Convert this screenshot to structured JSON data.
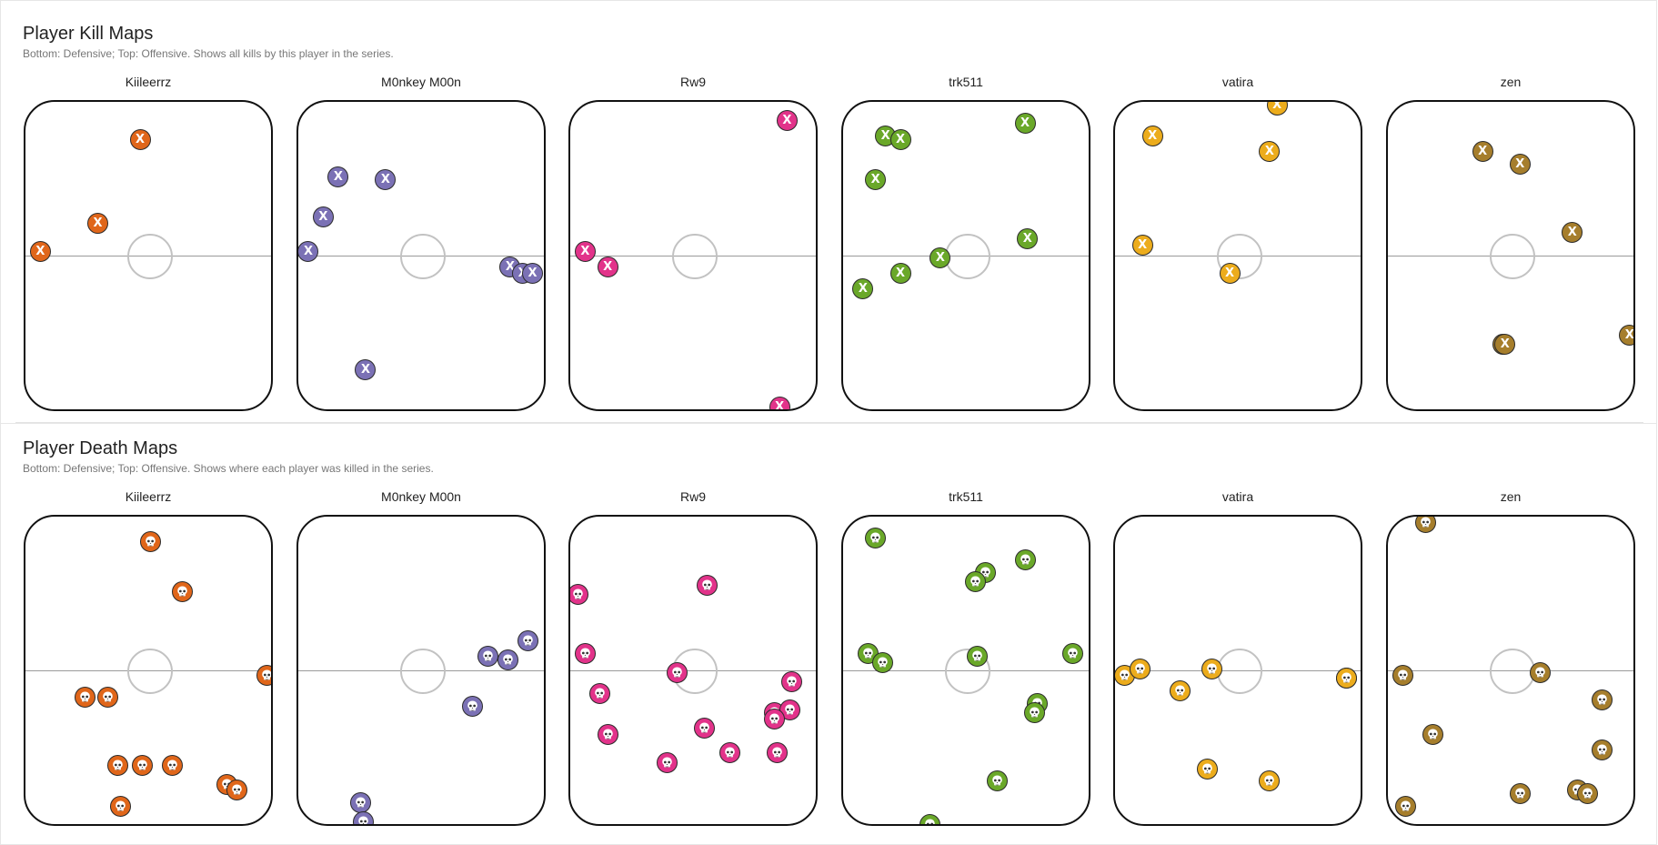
{
  "kill_section": {
    "title": "Player Kill Maps",
    "subtitle": "Bottom: Defensive; Top: Offensive. Shows all kills by this player in the series.",
    "marker_glyph": "X",
    "marker_icon": "x-icon"
  },
  "death_section": {
    "title": "Player Death Maps",
    "subtitle": "Bottom: Defensive; Top: Offensive. Shows where each player was killed in the series.",
    "marker_icon": "skull-icon"
  },
  "players": [
    {
      "name": "Kiileerrz",
      "color": "#e0661a",
      "kills": [
        [
          0.46,
          0.12
        ],
        [
          0.29,
          0.39
        ],
        [
          0.06,
          0.48
        ]
      ],
      "deaths": [
        [
          0.5,
          0.08
        ],
        [
          0.63,
          0.24
        ],
        [
          0.24,
          0.58
        ],
        [
          0.33,
          0.58
        ],
        [
          0.97,
          0.51
        ],
        [
          0.37,
          0.8
        ],
        [
          0.47,
          0.8
        ],
        [
          0.59,
          0.8
        ],
        [
          0.38,
          0.93
        ],
        [
          0.81,
          0.86
        ],
        [
          0.85,
          0.88
        ]
      ]
    },
    {
      "name": "M0nkey M00n",
      "color": "#7b71b5",
      "kills": [
        [
          0.16,
          0.24
        ],
        [
          0.35,
          0.25
        ],
        [
          0.1,
          0.37
        ],
        [
          0.04,
          0.48
        ],
        [
          0.85,
          0.53
        ],
        [
          0.9,
          0.55
        ],
        [
          0.94,
          0.55
        ],
        [
          0.27,
          0.86
        ]
      ],
      "deaths": [
        [
          0.92,
          0.4
        ],
        [
          0.76,
          0.45
        ],
        [
          0.84,
          0.46
        ],
        [
          0.7,
          0.61
        ],
        [
          0.25,
          0.92
        ],
        [
          0.26,
          0.98
        ]
      ]
    },
    {
      "name": "Rw9",
      "color": "#e2338a",
      "kills": [
        [
          0.87,
          0.06
        ],
        [
          0.06,
          0.48
        ],
        [
          0.15,
          0.53
        ],
        [
          0.84,
          0.98
        ]
      ],
      "deaths": [
        [
          0.03,
          0.25
        ],
        [
          0.55,
          0.22
        ],
        [
          0.06,
          0.44
        ],
        [
          0.43,
          0.5
        ],
        [
          0.12,
          0.57
        ],
        [
          0.89,
          0.53
        ],
        [
          0.15,
          0.7
        ],
        [
          0.54,
          0.68
        ],
        [
          0.82,
          0.63
        ],
        [
          0.88,
          0.62
        ],
        [
          0.82,
          0.65
        ],
        [
          0.39,
          0.79
        ],
        [
          0.64,
          0.76
        ],
        [
          0.83,
          0.76
        ]
      ]
    },
    {
      "name": "trk511",
      "color": "#6aa829",
      "kills": [
        [
          0.73,
          0.07
        ],
        [
          0.17,
          0.11
        ],
        [
          0.23,
          0.12
        ],
        [
          0.13,
          0.25
        ],
        [
          0.74,
          0.44
        ],
        [
          0.39,
          0.5
        ],
        [
          0.23,
          0.55
        ],
        [
          0.08,
          0.6
        ]
      ],
      "deaths": [
        [
          0.13,
          0.07
        ],
        [
          0.73,
          0.14
        ],
        [
          0.57,
          0.18
        ],
        [
          0.53,
          0.21
        ],
        [
          0.1,
          0.44
        ],
        [
          0.16,
          0.47
        ],
        [
          0.54,
          0.45
        ],
        [
          0.92,
          0.44
        ],
        [
          0.78,
          0.6
        ],
        [
          0.77,
          0.63
        ],
        [
          0.62,
          0.85
        ],
        [
          0.35,
          0.99
        ]
      ]
    },
    {
      "name": "vatira",
      "color": "#ecac1c",
      "kills": [
        [
          0.65,
          0.01
        ],
        [
          0.15,
          0.11
        ],
        [
          0.62,
          0.16
        ],
        [
          0.11,
          0.46
        ],
        [
          0.46,
          0.55
        ]
      ],
      "deaths": [
        [
          0.04,
          0.51
        ],
        [
          0.1,
          0.49
        ],
        [
          0.26,
          0.56
        ],
        [
          0.39,
          0.49
        ],
        [
          0.37,
          0.81
        ],
        [
          0.62,
          0.85
        ],
        [
          0.93,
          0.52
        ],
        [
          0.93,
          0.52
        ]
      ]
    },
    {
      "name": "zen",
      "color": "#a67e2c",
      "kills": [
        [
          0.38,
          0.16
        ],
        [
          0.53,
          0.2
        ],
        [
          0.74,
          0.42
        ],
        [
          0.46,
          0.78
        ],
        [
          0.47,
          0.78
        ],
        [
          0.97,
          0.75
        ]
      ],
      "deaths": [
        [
          0.15,
          0.02
        ],
        [
          0.06,
          0.51
        ],
        [
          0.61,
          0.5
        ],
        [
          0.86,
          0.59
        ],
        [
          0.18,
          0.7
        ],
        [
          0.86,
          0.75
        ],
        [
          0.53,
          0.89
        ],
        [
          0.76,
          0.88
        ],
        [
          0.8,
          0.89
        ],
        [
          0.07,
          0.93
        ]
      ]
    }
  ]
}
